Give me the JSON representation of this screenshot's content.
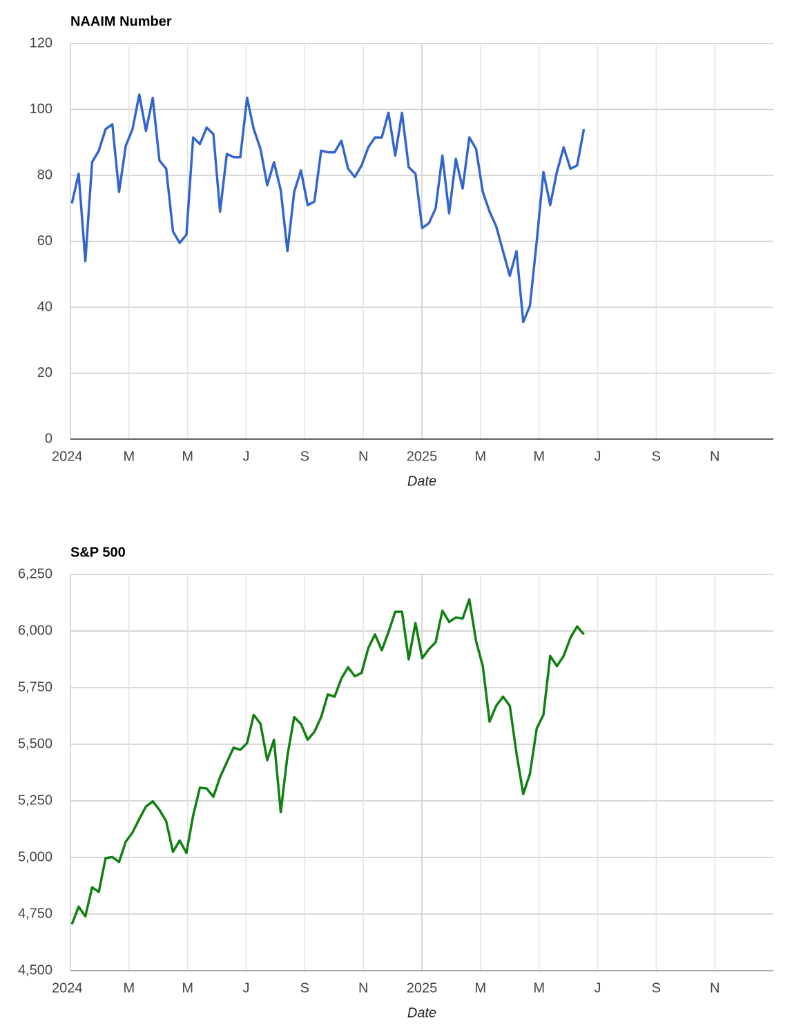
{
  "chart_data": [
    {
      "type": "line",
      "title": "NAAIM Number",
      "xlabel": "Date",
      "x": [
        0.05,
        0.28,
        0.51,
        0.74,
        0.97,
        1.2,
        1.43,
        1.66,
        1.89,
        2.12,
        2.35,
        2.58,
        2.81,
        3.04,
        3.27,
        3.5,
        3.73,
        3.96,
        4.19,
        4.42,
        4.65,
        4.88,
        5.11,
        5.34,
        5.57,
        5.8,
        6.03,
        6.26,
        6.49,
        6.72,
        6.95,
        7.18,
        7.41,
        7.64,
        7.87,
        8.1,
        8.33,
        8.56,
        8.79,
        9.02,
        9.25,
        9.48,
        9.71,
        9.94,
        10.17,
        10.4,
        10.63,
        10.86,
        11.09,
        11.32,
        11.55,
        11.78,
        12.01,
        12.24,
        12.47,
        12.7,
        12.93,
        13.16,
        13.39,
        13.62,
        13.85,
        14.08,
        14.31,
        14.54,
        14.77,
        15.0,
        15.23,
        15.46,
        15.69,
        15.92,
        16.15,
        16.38,
        16.61,
        16.84,
        17.07,
        17.3,
        17.53
      ],
      "series": [
        {
          "name": "NAAIM Number",
          "color": "#3366cc",
          "values": [
            71.5,
            80.5,
            54,
            84,
            87.5,
            94,
            95.5,
            75,
            89,
            94,
            104.5,
            93.5,
            103.5,
            84.5,
            82,
            63,
            59.5,
            62,
            91.5,
            89.5,
            94.5,
            92.5,
            69,
            86.5,
            85.5,
            85.5,
            103.5,
            94,
            88,
            77,
            84,
            75.5,
            57,
            75,
            81.5,
            71,
            72,
            87.5,
            87,
            87,
            90.5,
            82,
            79.5,
            83,
            88.5,
            91.5,
            91.5,
            99,
            86,
            99,
            82.5,
            80.5,
            64,
            65.5,
            70,
            86,
            68.5,
            85,
            76,
            91.5,
            88,
            75,
            69,
            64.5,
            57,
            49.5,
            57,
            35.5,
            40.5,
            60,
            81,
            71,
            81,
            88.5,
            82,
            83,
            94
          ]
        }
      ],
      "xlim": [
        0,
        24
      ],
      "xticks": [
        {
          "value": 0,
          "label": "2024"
        },
        {
          "value": 2,
          "label": "M"
        },
        {
          "value": 4,
          "label": "M"
        },
        {
          "value": 6,
          "label": "J"
        },
        {
          "value": 8,
          "label": "S"
        },
        {
          "value": 10,
          "label": "N"
        },
        {
          "value": 12,
          "label": "2025"
        },
        {
          "value": 14,
          "label": "M"
        },
        {
          "value": 16,
          "label": "M"
        },
        {
          "value": 18,
          "label": "J"
        },
        {
          "value": 20,
          "label": "S"
        },
        {
          "value": 22,
          "label": "N"
        }
      ],
      "ylim": [
        0,
        120
      ],
      "yticks": [
        0,
        20,
        40,
        60,
        80,
        100,
        120
      ],
      "grid": true
    },
    {
      "type": "line",
      "title": "S&P 500",
      "xlabel": "Date",
      "x": [
        0.05,
        0.28,
        0.51,
        0.74,
        0.97,
        1.2,
        1.43,
        1.66,
        1.89,
        2.12,
        2.35,
        2.58,
        2.81,
        3.04,
        3.27,
        3.5,
        3.73,
        3.96,
        4.19,
        4.42,
        4.65,
        4.88,
        5.11,
        5.34,
        5.57,
        5.8,
        6.03,
        6.26,
        6.49,
        6.72,
        6.95,
        7.18,
        7.41,
        7.64,
        7.87,
        8.1,
        8.33,
        8.56,
        8.79,
        9.02,
        9.25,
        9.48,
        9.71,
        9.94,
        10.17,
        10.4,
        10.63,
        10.86,
        11.09,
        11.32,
        11.55,
        11.78,
        12.01,
        12.24,
        12.47,
        12.7,
        12.93,
        13.16,
        13.39,
        13.62,
        13.85,
        14.08,
        14.31,
        14.54,
        14.77,
        15.0,
        15.23,
        15.46,
        15.69,
        15.92,
        16.15,
        16.38,
        16.61,
        16.84,
        17.07,
        17.3,
        17.53
      ],
      "series": [
        {
          "name": "S&P 500",
          "color": "#108010",
          "values": [
            4705,
            4783,
            4740,
            4868,
            4848,
            4997,
            5002,
            4980,
            5070,
            5110,
            5170,
            5225,
            5248,
            5210,
            5160,
            5025,
            5075,
            5020,
            5185,
            5308,
            5305,
            5268,
            5355,
            5420,
            5485,
            5475,
            5505,
            5630,
            5590,
            5430,
            5520,
            5200,
            5450,
            5620,
            5590,
            5520,
            5555,
            5620,
            5720,
            5710,
            5790,
            5840,
            5800,
            5815,
            5925,
            5985,
            5915,
            5995,
            6085,
            6085,
            5875,
            6035,
            5880,
            5920,
            5950,
            6090,
            6040,
            6060,
            6055,
            6140,
            5955,
            5845,
            5600,
            5670,
            5710,
            5670,
            5460,
            5280,
            5370,
            5570,
            5630,
            5890,
            5845,
            5890,
            5970,
            6020,
            5985
          ]
        }
      ],
      "xlim": [
        0,
        24
      ],
      "xticks": [
        {
          "value": 0,
          "label": "2024"
        },
        {
          "value": 2,
          "label": "M"
        },
        {
          "value": 4,
          "label": "M"
        },
        {
          "value": 6,
          "label": "J"
        },
        {
          "value": 8,
          "label": "S"
        },
        {
          "value": 10,
          "label": "N"
        },
        {
          "value": 12,
          "label": "2025"
        },
        {
          "value": 14,
          "label": "M"
        },
        {
          "value": 16,
          "label": "M"
        },
        {
          "value": 18,
          "label": "J"
        },
        {
          "value": 20,
          "label": "S"
        },
        {
          "value": 22,
          "label": "N"
        }
      ],
      "ylim": [
        4500,
        6250
      ],
      "yticks": [
        {
          "value": 4500,
          "label": "4,500"
        },
        {
          "value": 4750,
          "label": "4,750"
        },
        {
          "value": 5000,
          "label": "5,000"
        },
        {
          "value": 5250,
          "label": "5,250"
        },
        {
          "value": 5500,
          "label": "5,500"
        },
        {
          "value": 5750,
          "label": "5,750"
        },
        {
          "value": 6000,
          "label": "6,000"
        },
        {
          "value": 6250,
          "label": "6,250"
        }
      ],
      "grid": true
    }
  ]
}
